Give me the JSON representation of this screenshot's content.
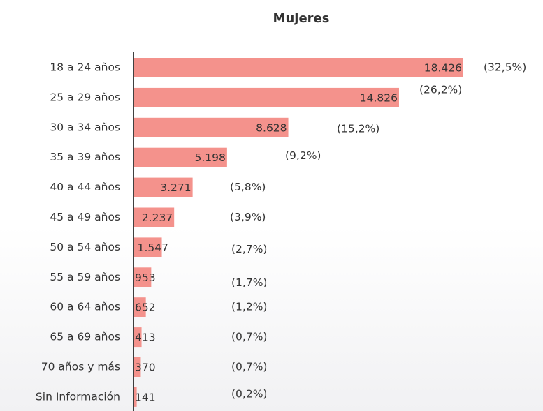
{
  "chart_data": {
    "type": "hbar",
    "title": "Mujeres",
    "categories": [
      "18 a 24 años",
      "25 a 29 años",
      "30 a 34 años",
      "35 a 39 años",
      "40 a 44 años",
      "45 a 49 años",
      "50 a 54 años",
      "55 a 59 años",
      "60 a 64 años",
      "65 a 69 años",
      "70 años y más",
      "Sin Información"
    ],
    "values": [
      18426,
      14826,
      8628,
      5198,
      3271,
      2237,
      1547,
      953,
      652,
      413,
      370,
      141
    ],
    "value_labels": [
      "18.426",
      "14.826",
      "8.628",
      "5.198",
      "3.271",
      "2.237",
      "1.547",
      "953",
      "652",
      "413",
      "370",
      "141"
    ],
    "shares": [
      32.5,
      26.2,
      15.2,
      9.2,
      5.8,
      3.9,
      2.7,
      1.7,
      1.2,
      0.7,
      0.7,
      0.2
    ],
    "share_labels": [
      "(32,5%)",
      "(26,2%)",
      "(15,2%)",
      "(9,2%)",
      "(5,8%)",
      "(3,9%)",
      "(2,7%)",
      "(1,7%)",
      "(1,2%)",
      "(0,7%)",
      "(0,7%)",
      "(0,2%)"
    ],
    "color": "#f4928c"
  }
}
